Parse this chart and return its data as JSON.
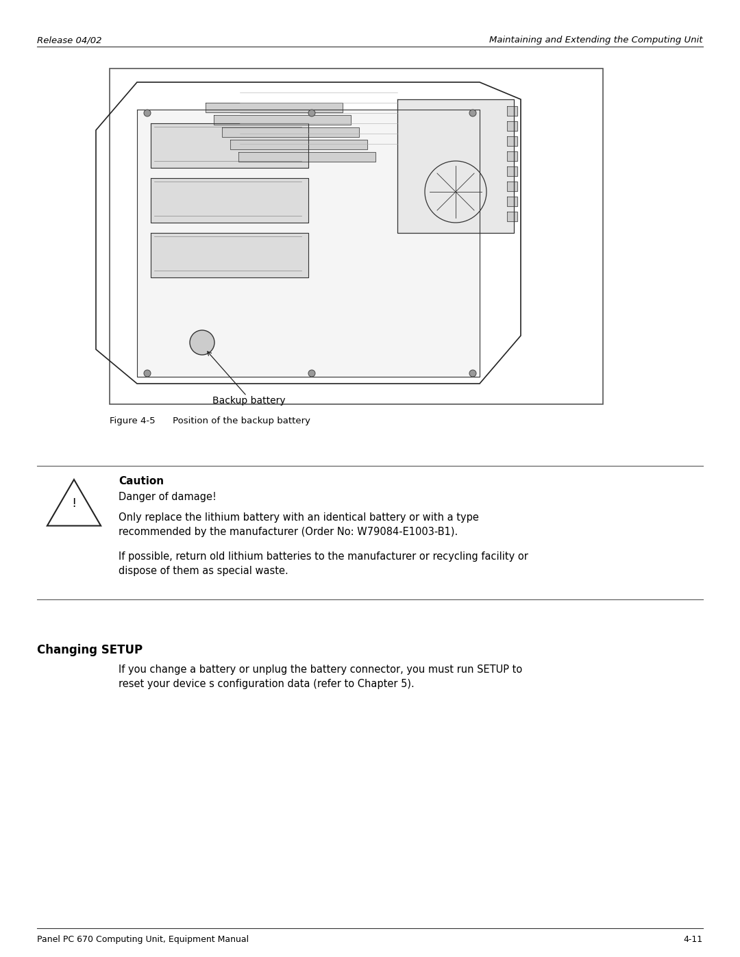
{
  "header_left": "Release 04/02",
  "header_right": "Maintaining and Extending the Computing Unit",
  "footer_left": "Panel PC 670 Computing Unit, Equipment Manual",
  "footer_right": "4-11",
  "figure_caption": "Figure 4-5      Position of the backup battery",
  "backup_battery_label": "Backup battery",
  "caution_title": "Caution",
  "caution_line1": "Danger of damage!",
  "caution_line2": "Only replace the lithium battery with an identical battery or with a type\nrecommended by the manufacturer (Order No: W79084-E1003-B1).",
  "caution_line3": "If possible, return old lithium batteries to the manufacturer or recycling facility or\ndispose of them as special waste.",
  "changing_setup_title": "Changing SETUP",
  "changing_setup_text": "If you change a battery or unplug the battery connector, you must run SETUP to\nreset your device s configuration data (refer to Chapter 5).",
  "bg_color": "#ffffff",
  "text_color": "#000000",
  "header_font_size": 9.5,
  "body_font_size": 10,
  "figure_box_color": "#f0f0f0",
  "figure_box_border": "#555555"
}
